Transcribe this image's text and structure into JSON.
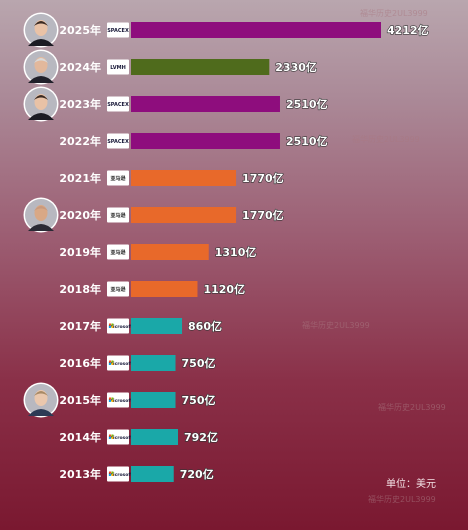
{
  "chart_data": {
    "type": "bar",
    "orientation": "horizontal",
    "categories": [
      "2025年",
      "2024年",
      "2023年",
      "2022年",
      "2021年",
      "2020年",
      "2019年",
      "2018年",
      "2017年",
      "2016年",
      "2015年",
      "2014年",
      "2013年"
    ],
    "values": [
      4212,
      2330,
      2510,
      2510,
      1770,
      1770,
      1310,
      1120,
      860,
      750,
      750,
      792,
      720
    ],
    "value_labels": [
      "4212亿",
      "2330亿",
      "2510亿",
      "2510亿",
      "1770亿",
      "1770亿",
      "1310亿",
      "1120亿",
      "860亿",
      "750亿",
      "750亿",
      "792亿",
      "720亿"
    ],
    "unit_note": "单位：美元",
    "companies": [
      "SPACEX",
      "LVMH",
      "SPACEX",
      "SPACEX",
      "amazon",
      "amazon",
      "amazon",
      "amazon",
      "Microsoft",
      "Microsoft",
      "Microsoft",
      "Microsoft",
      "Microsoft"
    ],
    "company_logo_text": {
      "SPACEX": "SPACEX",
      "LVMH": "LVMH",
      "amazon": "亚马逊",
      "Microsoft": "Microsoft"
    },
    "colors": {
      "SPACEX": "#8e0d7d",
      "LVMH": "#4f6b1c",
      "amazon": "#e8692a",
      "Microsoft": "#1aa8a8"
    },
    "portraits": [
      {
        "row": 0,
        "person": "elon-musk"
      },
      {
        "row": 1,
        "person": "bernard-arnault"
      },
      {
        "row": 2,
        "person": "elon-musk"
      },
      {
        "row": 5,
        "person": "jeff-bezos"
      },
      {
        "row": 10,
        "person": "bill-gates"
      }
    ],
    "watermark": "福华历史2UL3999"
  }
}
